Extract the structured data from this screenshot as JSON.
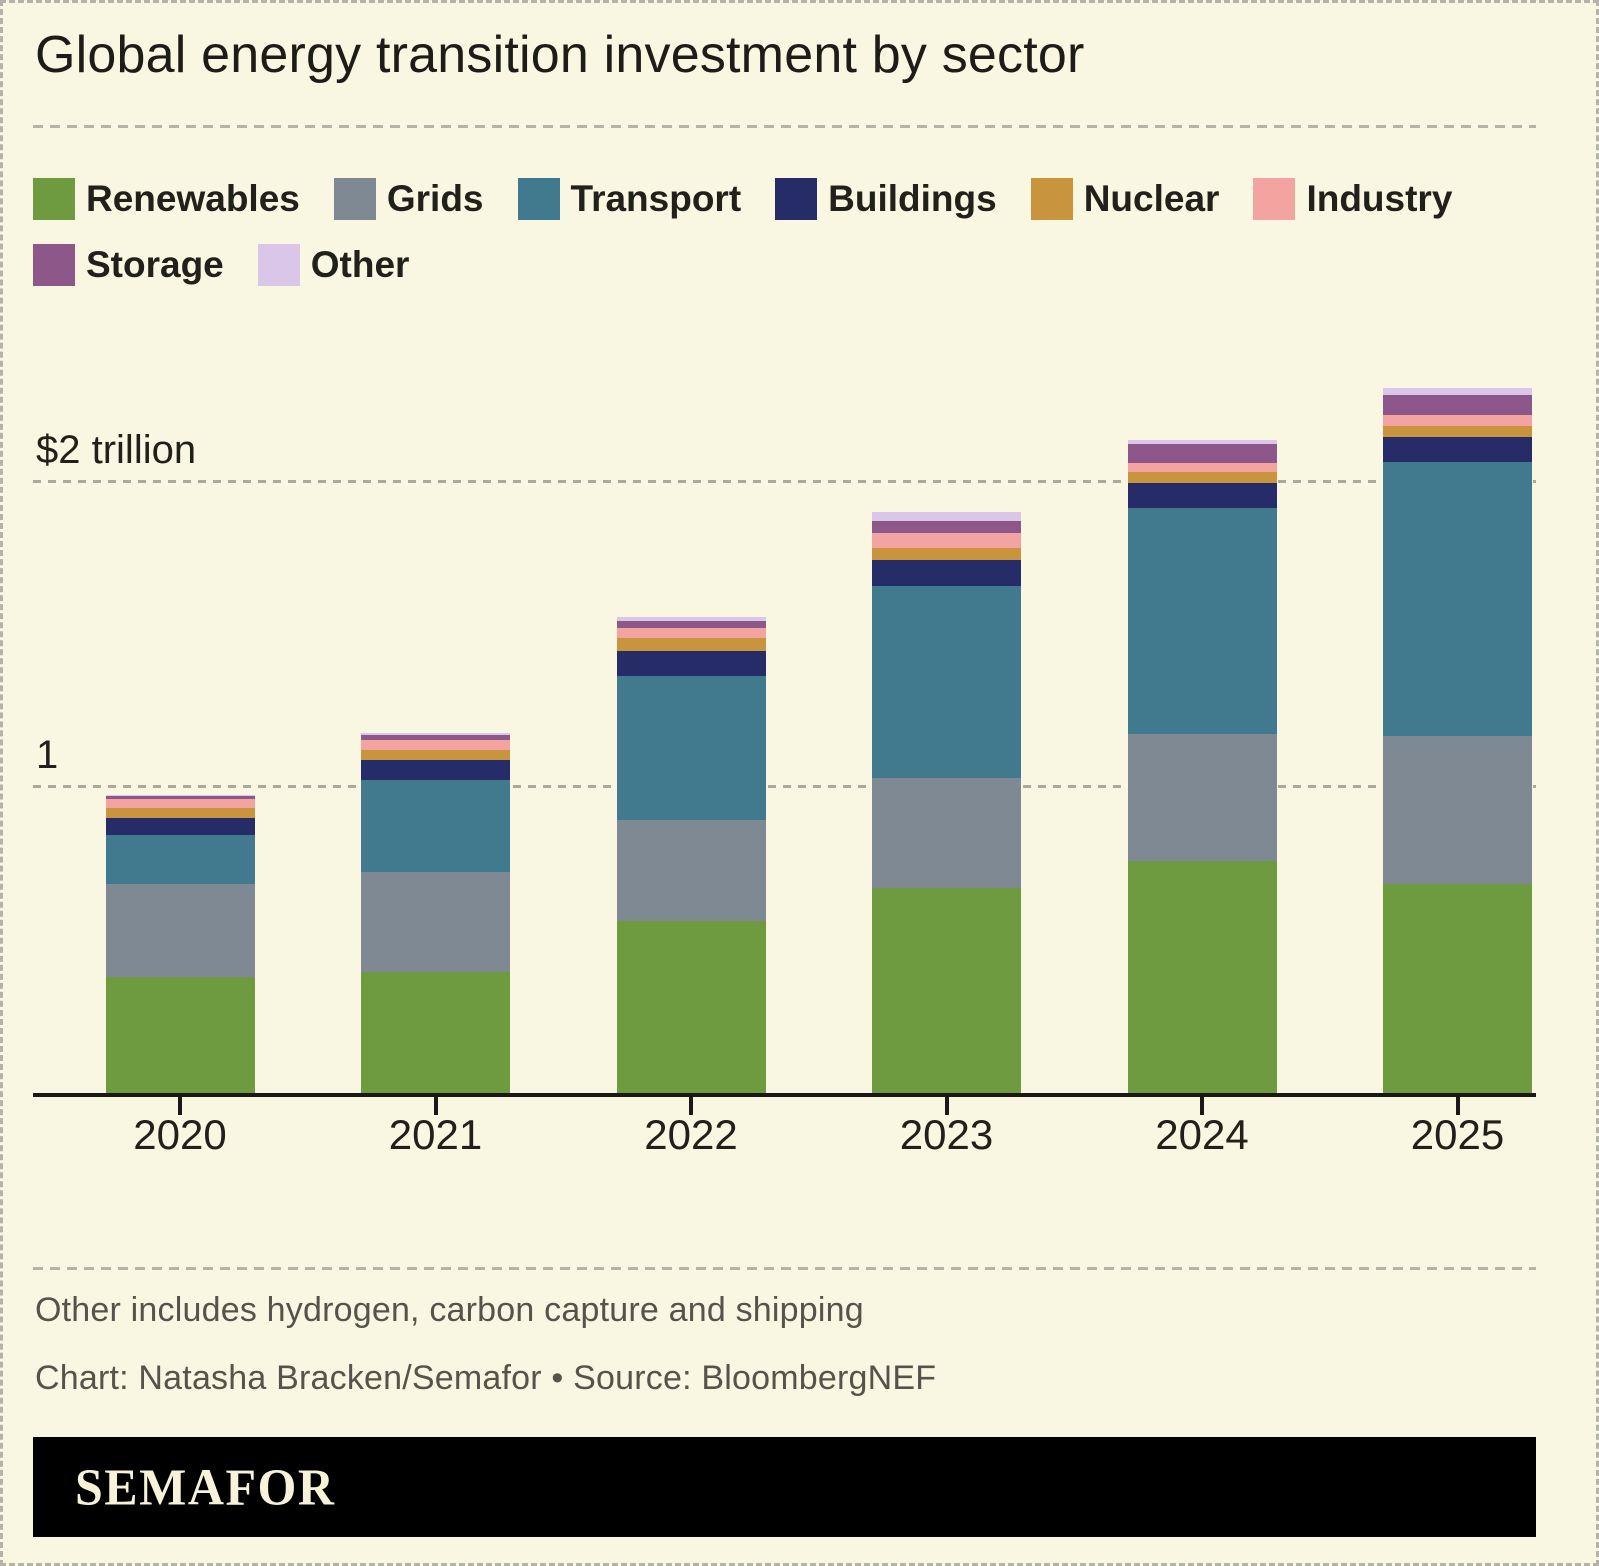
{
  "title": "Global energy transition investment by sector",
  "footnote": "Other includes hydrogen, carbon capture and shipping",
  "credit": "Chart: Natasha Bracken/Semafor • Source: BloombergNEF",
  "logo": {
    "text": "SEMAFOR"
  },
  "colors": {
    "background": "#f9f7e2",
    "text_dark": "#21201a",
    "text_muted": "#56544a",
    "gridline": "#a9a99c",
    "axis": "#1a1915"
  },
  "y_axis": {
    "unit": "trillion USD",
    "gridlines": [
      {
        "value": 2,
        "label": "$2 trillion"
      },
      {
        "value": 1,
        "label": "1"
      }
    ]
  },
  "chart_data": {
    "type": "bar",
    "subtype": "stacked-column",
    "unit_values": "US$ billions (estimated from chart)",
    "categories": [
      "2020",
      "2021",
      "2022",
      "2023",
      "2024",
      "2025"
    ],
    "series": [
      {
        "name": "Renewables",
        "color": "#6f9b40",
        "values": [
          380,
          397,
          564,
          672,
          761,
          686
        ]
      },
      {
        "name": "Grids",
        "color": "#7e8994",
        "values": [
          305,
          328,
          331,
          361,
          417,
          485
        ]
      },
      {
        "name": "Transport",
        "color": "#41798e",
        "values": [
          161,
          302,
          472,
          630,
          741,
          899
        ]
      },
      {
        "name": "Buildings",
        "color": "#252c67",
        "values": [
          56,
          66,
          82,
          85,
          82,
          82
        ]
      },
      {
        "name": "Nuclear",
        "color": "#c8943e",
        "values": [
          33,
          33,
          43,
          39,
          36,
          36
        ]
      },
      {
        "name": "Industry",
        "color": "#f3a4a1",
        "values": [
          30,
          33,
          33,
          49,
          30,
          36
        ]
      },
      {
        "name": "Storage",
        "color": "#8e5789",
        "values": [
          10,
          16,
          23,
          39,
          62,
          66
        ]
      },
      {
        "name": "Other",
        "color": "#d9c6e9",
        "values": [
          3,
          4,
          13,
          30,
          13,
          23
        ]
      }
    ],
    "totals_approx": [
      978,
      1179,
      1561,
      1905,
      2142,
      2313
    ],
    "ylim": [
      0,
      2430
    ],
    "grid": "horizontal-dashed",
    "legend_position": "top"
  }
}
